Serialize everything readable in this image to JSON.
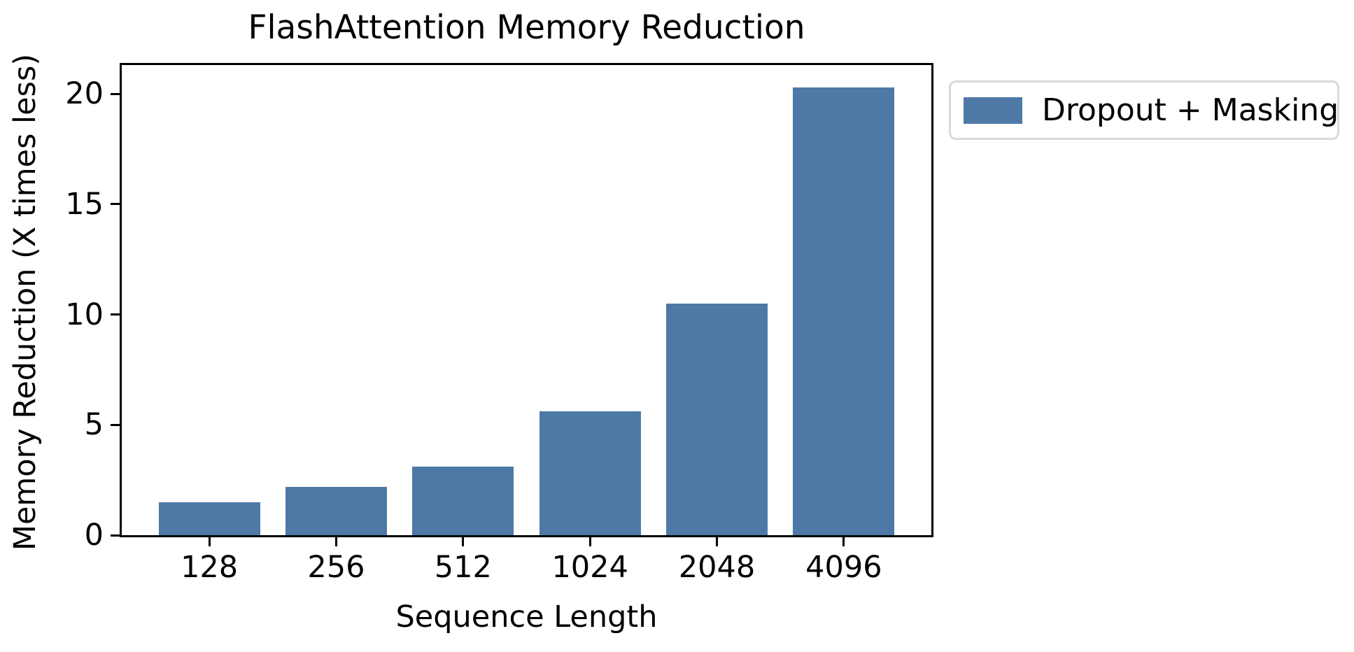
{
  "chart_data": {
    "type": "bar",
    "title": "FlashAttention Memory Reduction",
    "xlabel": "Sequence Length",
    "ylabel": "Memory Reduction (X times less)",
    "categories": [
      "128",
      "256",
      "512",
      "1024",
      "2048",
      "4096"
    ],
    "series": [
      {
        "name": "Dropout + Masking",
        "values": [
          1.5,
          2.2,
          3.1,
          5.6,
          10.5,
          20.3
        ]
      }
    ],
    "yticks": [
      0,
      5,
      10,
      15,
      20
    ],
    "ylim": [
      0,
      21.3
    ],
    "xlim": [
      -0.69,
      5.69
    ],
    "bar_width_units": 0.8,
    "grid": false,
    "legend": {
      "label": "Dropout + Masking",
      "position": "outside-upper-right"
    },
    "colors": {
      "bar": "#4e79a7",
      "text": "#000000",
      "spine": "#000000",
      "legend_border": "#d9d9d9",
      "background": "#ffffff"
    }
  }
}
